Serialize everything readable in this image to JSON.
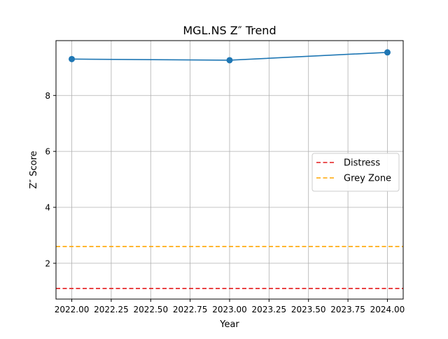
{
  "chart_data": {
    "type": "line",
    "title": "MGL.NS Z″ Trend",
    "xlabel": "Year",
    "ylabel": "Z″ Score",
    "xlim": [
      2021.9,
      2024.1
    ],
    "ylim": [
      0.72,
      9.96
    ],
    "xticks": [
      2022.0,
      2022.25,
      2022.5,
      2022.75,
      2023.0,
      2023.25,
      2023.5,
      2023.75,
      2024.0
    ],
    "xtick_labels": [
      "2022.00",
      "2022.25",
      "2022.50",
      "2022.75",
      "2023.00",
      "2023.25",
      "2023.50",
      "2023.75",
      "2024.00"
    ],
    "yticks": [
      2,
      4,
      6,
      8
    ],
    "ytick_labels": [
      "2",
      "4",
      "6",
      "8"
    ],
    "grid": true,
    "legend_position": "center-right",
    "series": [
      {
        "color": "#1f77b4",
        "style": "solid",
        "marker": "circle",
        "x": [
          2022.0,
          2023.0,
          2024.0
        ],
        "y": [
          9.3,
          9.26,
          9.54
        ]
      },
      {
        "name": "Distress",
        "color": "#e41a1c",
        "style": "dashed",
        "hline": 1.1
      },
      {
        "name": "Grey Zone",
        "color": "#ffa500",
        "style": "dashed",
        "hline": 2.6
      }
    ]
  }
}
